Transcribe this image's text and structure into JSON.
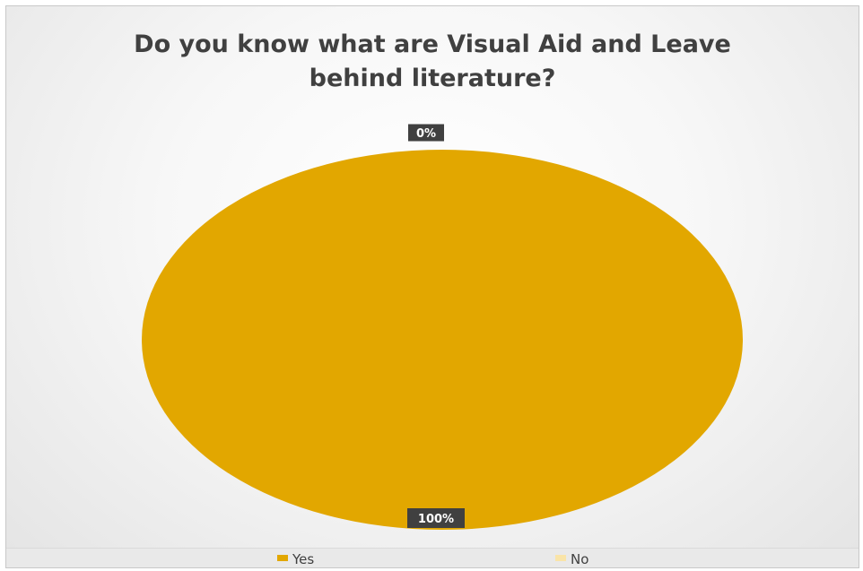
{
  "chart_data": {
    "type": "pie",
    "title_lines": [
      "Do you know what are Visual Aid and Leave",
      "behind literature?"
    ],
    "categories": [
      "Yes",
      "No"
    ],
    "values": [
      100,
      0
    ],
    "data_labels": [
      "100%",
      "0%"
    ],
    "colors": [
      "#e2a700",
      "#f9e4a8"
    ],
    "label_bg_color": "#404040",
    "legend_position": "bottom"
  }
}
